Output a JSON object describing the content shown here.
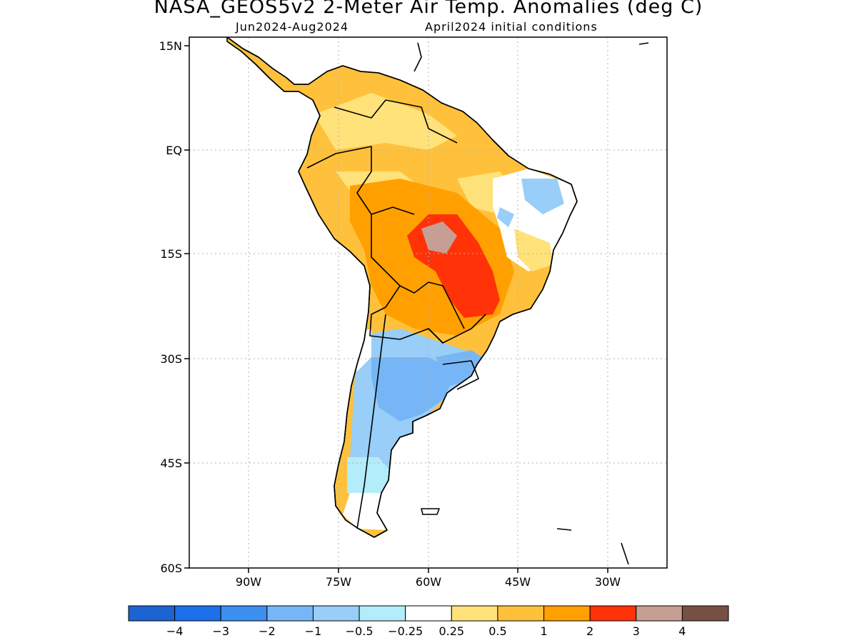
{
  "header": {
    "title": "NASA_GEOS5v2 2-Meter Air Temp. Anomalies (deg C)",
    "period": "Jun2024-Aug2024",
    "init": "April2024 initial conditions"
  },
  "map": {
    "lat_labels": [
      "15N",
      "EQ",
      "15S",
      "30S",
      "45S",
      "60S"
    ],
    "lon_labels": [
      "90W",
      "75W",
      "60W",
      "45W",
      "30W"
    ],
    "lat_range": [
      -60,
      15
    ],
    "lon_range": [
      -100,
      -20
    ]
  },
  "colorbar": {
    "labels": [
      "−4",
      "−3",
      "−2",
      "−1",
      "−0.5",
      "−0.25",
      "0.25",
      "0.5",
      "1",
      "2",
      "3",
      "4"
    ],
    "colors": [
      "#1c64d2",
      "#1e6fea",
      "#3d8ff0",
      "#77b6f6",
      "#98cef8",
      "#b3ecfa",
      "#ffffff",
      "#ffe27a",
      "#ffc13c",
      "#ffa000",
      "#ff3208",
      "#c79e94",
      "#775045"
    ]
  }
}
